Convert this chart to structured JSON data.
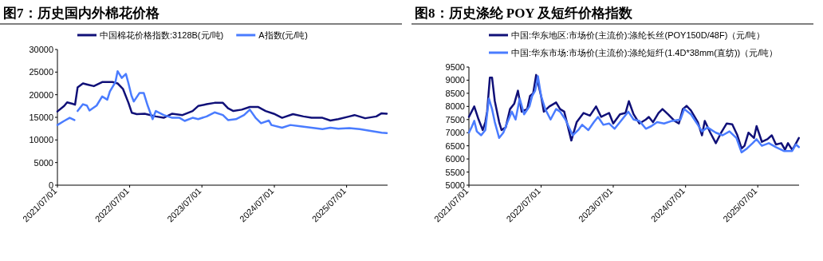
{
  "chart_data": [
    {
      "type": "line",
      "title": "图7：历史国内外棉花价格",
      "legend": "top",
      "xlim": [
        "2021-07-01",
        "2026-01-24"
      ],
      "xticks": [
        {
          "value": "2021-07-01",
          "label": "2021/07/01"
        },
        {
          "value": "2022-07-01",
          "label": "2022/07/01"
        },
        {
          "value": "2023-07-01",
          "label": "2023/07/01"
        },
        {
          "value": "2024-07-01",
          "label": "2024/07/01"
        },
        {
          "value": "2025-07-01",
          "label": "2025/07/01"
        }
      ],
      "ylim": [
        0,
        30000
      ],
      "yticks": [
        0,
        5000,
        10000,
        15000,
        20000,
        25000,
        30000
      ],
      "series": [
        {
          "name": "中国棉花价格指数:3128B(元/吨)",
          "color": "#101078",
          "x": [
            "2021-07-01",
            "2021-08-04",
            "2021-08-19",
            "2021-09-15",
            "2021-09-28",
            "2021-10-11",
            "2021-11-07",
            "2021-12-04",
            "2022-01-01",
            "2022-02-12",
            "2022-04-05",
            "2022-05-01",
            "2022-05-28",
            "2022-06-25",
            "2022-07-12",
            "2022-08-06",
            "2022-09-15",
            "2022-11-10",
            "2022-12-20",
            "2023-02-01",
            "2023-03-25",
            "2023-05-15",
            "2023-06-12",
            "2023-07-25",
            "2023-09-03",
            "2023-10-15",
            "2023-11-10",
            "2023-12-07",
            "2024-01-18",
            "2024-02-28",
            "2024-04-09",
            "2024-05-18",
            "2024-06-28",
            "2024-08-09",
            "2024-10-03",
            "2024-11-25",
            "2025-01-05",
            "2025-03-01",
            "2025-04-10",
            "2025-05-20",
            "2025-07-15",
            "2025-08-10",
            "2025-10-03",
            "2025-11-28",
            "2025-12-25",
            "2026-01-20"
          ],
          "values": [
            16300,
            17500,
            18300,
            18000,
            17800,
            21600,
            22500,
            22200,
            21900,
            22800,
            22800,
            22500,
            21300,
            18200,
            16000,
            15700,
            15800,
            15200,
            14900,
            15800,
            15500,
            16400,
            17500,
            17900,
            18200,
            18200,
            17000,
            16400,
            16700,
            17300,
            17300,
            16400,
            15800,
            14900,
            15700,
            15200,
            14900,
            14900,
            14300,
            14600,
            15200,
            15500,
            14800,
            15200,
            15900,
            15800
          ]
        },
        {
          "name": "A指数(元/吨)",
          "color": "#4a7cff",
          "x": [
            "2021-07-01",
            "2021-08-04",
            "2021-09-01",
            "2021-09-25",
            "2021-10-03",
            "2021-10-11",
            "2021-11-07",
            "2021-11-27",
            "2021-12-10",
            "2022-01-15",
            "2022-02-12",
            "2022-03-10",
            "2022-03-23",
            "2022-04-20",
            "2022-05-01",
            "2022-05-22",
            "2022-06-12",
            "2022-06-25",
            "2022-07-10",
            "2022-07-22",
            "2022-08-20",
            "2022-09-10",
            "2022-09-30",
            "2022-10-25",
            "2022-11-10",
            "2022-12-20",
            "2023-02-01",
            "2023-03-10",
            "2023-04-05",
            "2023-05-15",
            "2023-06-12",
            "2023-07-25",
            "2023-09-03",
            "2023-10-15",
            "2023-11-10",
            "2023-12-20",
            "2024-01-30",
            "2024-02-28",
            "2024-03-28",
            "2024-04-25",
            "2024-06-03",
            "2024-06-16",
            "2024-08-09",
            "2024-09-20",
            "2024-11-10",
            "2025-01-05",
            "2025-03-01",
            "2025-04-10",
            "2025-05-20",
            "2025-07-15",
            "2025-09-05",
            "2025-10-30",
            "2025-12-25",
            "2026-01-20"
          ],
          "values": [
            13300,
            14200,
            14900,
            14400,
            null,
            16400,
            17900,
            17600,
            16500,
            17600,
            19600,
            18900,
            20700,
            22800,
            25200,
            23700,
            24600,
            22500,
            19800,
            18500,
            20400,
            20400,
            17600,
            14600,
            16400,
            15500,
            14900,
            14900,
            14200,
            14900,
            14600,
            15200,
            16100,
            15500,
            14400,
            14600,
            15500,
            16700,
            14900,
            13700,
            14300,
            13300,
            12700,
            13300,
            13000,
            12700,
            12400,
            12700,
            12500,
            12600,
            12400,
            12000,
            11600,
            11500
          ]
        }
      ]
    },
    {
      "type": "line",
      "title": "图8：历史涤纶 POY 及短纤价格指数",
      "legend": "top",
      "xlim": [
        "2021-07-01",
        "2026-01-26"
      ],
      "xticks": [
        {
          "value": "2021-07-01",
          "label": "2021/07/01"
        },
        {
          "value": "2022-07-01",
          "label": "2022/07/01"
        },
        {
          "value": "2023-07-01",
          "label": "2023/07/01"
        },
        {
          "value": "2024-07-01",
          "label": "2024/07/01"
        },
        {
          "value": "2025-07-01",
          "label": "2025/07/01"
        }
      ],
      "ylim": [
        5000,
        9500
      ],
      "yticks": [
        5000,
        5500,
        6000,
        6500,
        7000,
        7500,
        8000,
        8500,
        9000,
        9500
      ],
      "series": [
        {
          "name": "中国:华东地区:市场价(主流价):涤纶长丝(POY150D/48F)（元/吨）",
          "color": "#101078",
          "x": [
            "2021-07-01",
            "2021-07-28",
            "2021-08-19",
            "2021-09-09",
            "2021-09-22",
            "2021-10-01",
            "2021-10-15",
            "2021-10-26",
            "2021-11-09",
            "2021-12-01",
            "2021-12-13",
            "2022-01-03",
            "2022-01-25",
            "2022-02-15",
            "2022-03-06",
            "2022-03-25",
            "2022-04-22",
            "2022-05-06",
            "2022-05-22",
            "2022-06-06",
            "2022-07-01",
            "2022-07-15",
            "2022-08-12",
            "2022-09-15",
            "2022-10-05",
            "2022-10-26",
            "2022-12-01",
            "2022-12-28",
            "2023-02-01",
            "2023-03-05",
            "2023-04-05",
            "2023-05-01",
            "2023-06-10",
            "2023-07-01",
            "2023-08-04",
            "2023-09-01",
            "2023-09-18",
            "2023-10-12",
            "2023-11-10",
            "2023-12-13",
            "2023-12-28",
            "2024-01-18",
            "2024-02-15",
            "2024-03-06",
            "2024-04-03",
            "2024-05-06",
            "2024-05-28",
            "2024-06-17",
            "2024-07-06",
            "2024-07-28",
            "2024-09-01",
            "2024-09-22",
            "2024-10-06",
            "2024-11-03",
            "2024-12-01",
            "2024-12-28",
            "2025-01-25",
            "2025-02-22",
            "2025-03-20",
            "2025-04-10",
            "2025-04-25",
            "2025-05-15",
            "2025-06-12",
            "2025-06-25",
            "2025-07-22",
            "2025-08-19",
            "2025-09-10",
            "2025-10-01",
            "2025-10-28",
            "2025-11-16",
            "2025-12-01",
            "2025-12-22",
            "2026-01-04",
            "2026-01-25"
          ],
          "values": [
            7600,
            8000,
            7500,
            7100,
            7400,
            7800,
            9100,
            9100,
            8200,
            7400,
            7100,
            7200,
            7900,
            8100,
            8600,
            7800,
            7900,
            8400,
            8500,
            9200,
            8400,
            7800,
            8000,
            8150,
            7900,
            7800,
            6700,
            7400,
            7750,
            7650,
            8000,
            7600,
            7750,
            7350,
            7700,
            7750,
            8200,
            7700,
            7350,
            7500,
            7600,
            7400,
            7750,
            7900,
            7700,
            7450,
            7350,
            7900,
            8020,
            7850,
            7400,
            6900,
            7450,
            7000,
            6600,
            7000,
            7350,
            7320,
            6900,
            6400,
            6500,
            7000,
            6800,
            7250,
            6650,
            6750,
            6900,
            6550,
            6600,
            6350,
            6600,
            6350,
            6500,
            6800
          ]
        },
        {
          "name": "中国:华东市场:市场价(主流价):涤纶短纤(1.4D*38mm(直纺))（元/吨）",
          "color": "#4a7cff",
          "x": [
            "2021-07-01",
            "2021-07-14",
            "2021-07-28",
            "2021-08-10",
            "2021-09-01",
            "2021-09-22",
            "2021-10-10",
            "2021-10-26",
            "2021-11-09",
            "2021-12-01",
            "2021-12-22",
            "2022-01-12",
            "2022-02-03",
            "2022-02-22",
            "2022-03-15",
            "2022-04-06",
            "2022-05-03",
            "2022-05-17",
            "2022-06-01",
            "2022-06-15",
            "2022-07-01",
            "2022-07-22",
            "2022-08-18",
            "2022-09-15",
            "2022-10-05",
            "2022-11-01",
            "2022-12-08",
            "2023-01-05",
            "2023-01-25",
            "2023-02-25",
            "2023-03-25",
            "2023-04-15",
            "2023-05-12",
            "2023-06-10",
            "2023-07-08",
            "2023-08-04",
            "2023-09-15",
            "2023-10-12",
            "2023-11-10",
            "2023-12-13",
            "2024-01-10",
            "2024-02-08",
            "2024-03-14",
            "2024-04-24",
            "2024-06-05",
            "2024-06-24",
            "2024-07-28",
            "2024-09-01",
            "2024-09-22",
            "2024-10-20",
            "2024-12-01",
            "2025-01-04",
            "2025-02-08",
            "2025-03-15",
            "2025-04-10",
            "2025-05-08",
            "2025-06-05",
            "2025-06-25",
            "2025-07-22",
            "2025-08-26",
            "2025-10-01",
            "2025-11-10",
            "2025-12-22",
            "2026-01-10",
            "2026-01-25"
          ],
          "values": [
            7000,
            7200,
            7450,
            7050,
            6900,
            7100,
            8300,
            7900,
            7400,
            6800,
            7000,
            7400,
            7800,
            7500,
            8300,
            7700,
            8000,
            8400,
            8600,
            9150,
            8400,
            7900,
            7500,
            7900,
            7800,
            7500,
            6900,
            7100,
            7300,
            7100,
            7400,
            7600,
            7300,
            7350,
            7150,
            7400,
            7800,
            7500,
            7450,
            7150,
            7250,
            7400,
            7350,
            7450,
            7500,
            7900,
            7700,
            7300,
            7050,
            7200,
            7000,
            6900,
            7050,
            6800,
            6250,
            6400,
            6600,
            6750,
            6500,
            6600,
            6450,
            6300,
            6300,
            6550,
            6450
          ]
        }
      ]
    }
  ]
}
